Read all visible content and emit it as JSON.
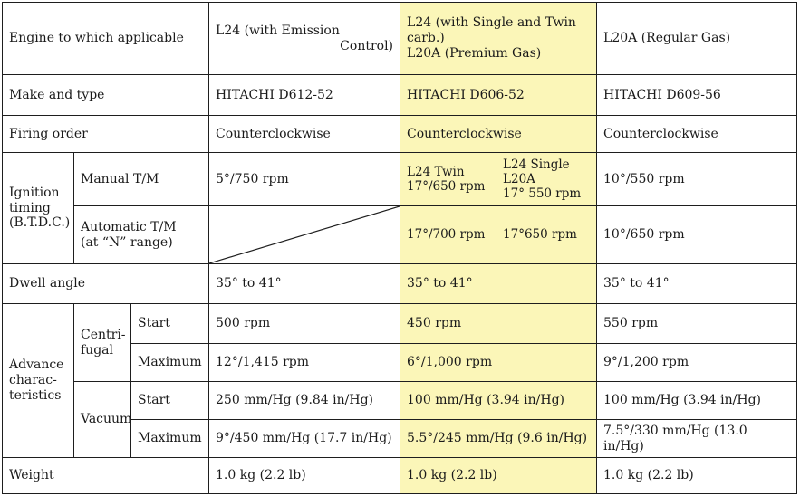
{
  "colors": {
    "highlight": "#fbf6b8",
    "border": "#1e1e1e",
    "text": "#1a1a1a"
  },
  "header": {
    "label": "Engine to which applicable",
    "col1_line1": "L24 (with Emission",
    "col1_line2": "Control)",
    "col2_line1": "L24 (with Single and Twin",
    "col2_line2": "carb.)",
    "col2_line3": "L20A (Premium Gas)",
    "col3": "L20A (Regular Gas)"
  },
  "make": {
    "label": "Make and type",
    "col1": "HITACHI  D612-52",
    "col2": "HITACHI  D606-52",
    "col3": "HITACHI  D609-56"
  },
  "firing": {
    "label": "Firing order",
    "col1": "Counterclockwise",
    "col2": "Counterclockwise",
    "col3": "Counterclockwise"
  },
  "ignition": {
    "label_line1": "Ignition",
    "label_line2": "timing",
    "label_line3": "(B.T.D.C.)",
    "manual": {
      "label": "Manual T/M",
      "col1": "5°/750 rpm",
      "col2a_line1": "L24 Twin",
      "col2a_line2": "17°/650 rpm",
      "col2b_line1": "L24 Single",
      "col2b_line2": "L20A",
      "col2b_line3": "17° 550 rpm",
      "col3": "10°/550 rpm"
    },
    "automatic": {
      "label_line1": "Automatic T/M",
      "label_line2": "(at “N” range)",
      "col2a": "17°/700 rpm",
      "col2b": "17°650 rpm",
      "col3": "10°/650 rpm"
    }
  },
  "dwell": {
    "label": "Dwell angle",
    "col1": "35° to 41°",
    "col2": "35° to 41°",
    "col3": "35° to 41°"
  },
  "advance": {
    "label_line1": "Advance",
    "label_line2": "charac-",
    "label_line3": "teristics",
    "centrifugal": {
      "label_line1": "Centri-",
      "label_line2": "fugal",
      "start": {
        "label": "Start",
        "col1": "500 rpm",
        "col2": "450 rpm",
        "col3": "550 rpm"
      },
      "maximum": {
        "label": "Maximum",
        "col1": "12°/1,415 rpm",
        "col2": "6°/1,000 rpm",
        "col3": "9°/1,200 rpm"
      }
    },
    "vacuum": {
      "label": "Vacuum",
      "start": {
        "label": "Start",
        "col1": "250 mm/Hg (9.84 in/Hg)",
        "col2": "100 mm/Hg (3.94 in/Hg)",
        "col3": "100 mm/Hg (3.94 in/Hg)"
      },
      "maximum": {
        "label": "Maximum",
        "col1": "9°/450 mm/Hg (17.7 in/Hg)",
        "col2": "5.5°/245 mm/Hg (9.6 in/Hg)",
        "col3": "7.5°/330 mm/Hg (13.0 in/Hg)"
      }
    }
  },
  "weight": {
    "label": "Weight",
    "col1": "1.0 kg (2.2 lb)",
    "col2": "1.0 kg (2.2 lb)",
    "col3": "1.0 kg (2.2 lb)"
  }
}
